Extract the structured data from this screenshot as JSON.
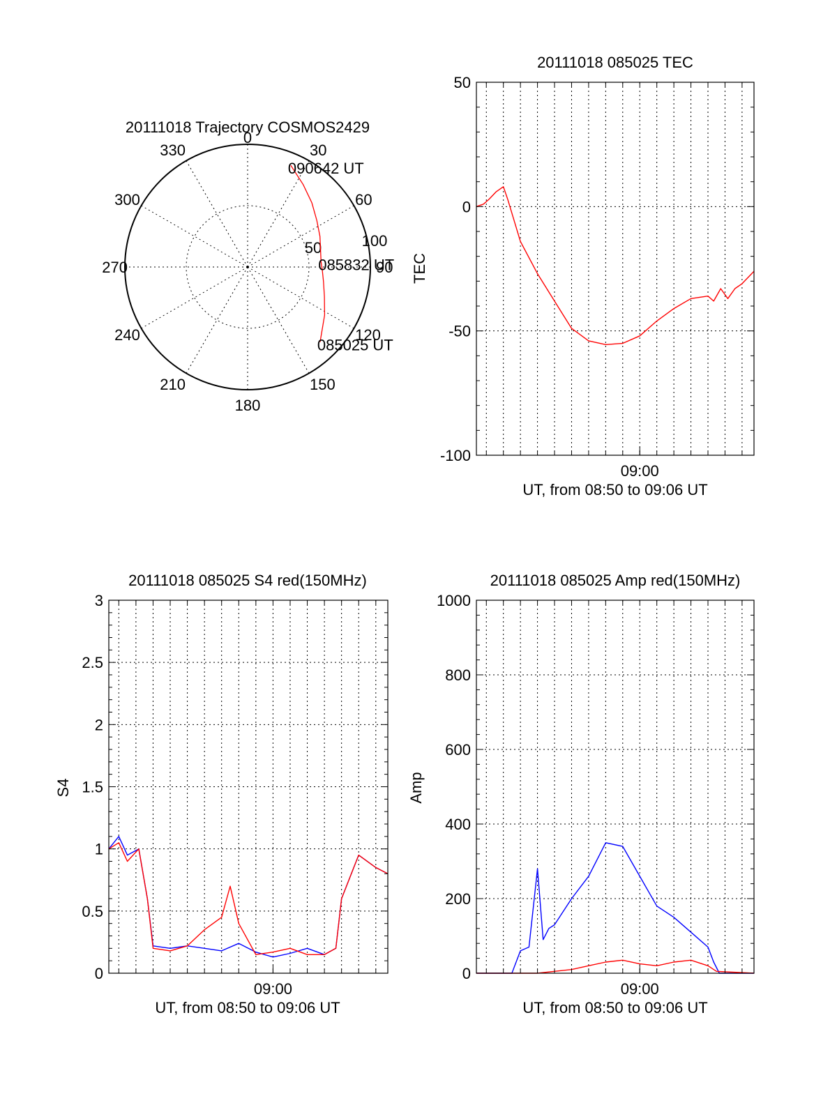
{
  "chart_data": [
    {
      "id": "trajectory",
      "type": "polar",
      "title": "20111018 Trajectory COSMOS2429",
      "angle_ticks": [
        "0",
        "30",
        "60",
        "90",
        "120",
        "150",
        "180",
        "210",
        "240",
        "270",
        "300",
        "330"
      ],
      "radius_ticks": [
        "50",
        "100"
      ],
      "rlim": [
        0,
        100
      ],
      "grid": true,
      "series": [
        {
          "color": "#ff0000",
          "points_azimuth_deg": [
            23,
            34,
            45,
            56,
            67,
            77,
            86,
            93,
            101,
            111,
            122,
            136
          ],
          "points_radius": [
            90,
            81,
            74,
            68,
            64,
            61,
            60,
            61,
            63,
            67,
            74,
            85
          ]
        }
      ],
      "annotations": [
        {
          "text": "090642 UT",
          "azimuth_deg": 23,
          "radius": 90
        },
        {
          "text": "085832 UT",
          "azimuth_deg": 86,
          "radius": 60
        },
        {
          "text": "085025 UT",
          "azimuth_deg": 136,
          "radius": 85
        }
      ]
    },
    {
      "id": "tec",
      "type": "line",
      "title": "20111018 085025 TEC",
      "xlabel": "UT, from 08:50 to 09:06 UT",
      "ylabel": "TEC",
      "xlim": [
        "08:50:25",
        "09:06:42"
      ],
      "x_tick_labels": [
        "09:00"
      ],
      "x_tick_values": [
        "09:00:00"
      ],
      "ylim": [
        -100,
        50
      ],
      "y_tick_labels": [
        "50",
        "0",
        "-50",
        "-100"
      ],
      "y_tick_values": [
        50,
        0,
        -50,
        -100
      ],
      "grid": true,
      "series": [
        {
          "color": "#ff0000",
          "x": [
            "08:50:25",
            "08:50:50",
            "08:51:10",
            "08:51:35",
            "08:52:00",
            "08:52:15",
            "08:53:00",
            "08:54:00",
            "08:55:00",
            "08:56:00",
            "08:57:00",
            "08:58:00",
            "08:59:00",
            "09:00:00",
            "09:01:00",
            "09:02:00",
            "09:03:00",
            "09:04:00",
            "09:04:20",
            "09:04:45",
            "09:05:10",
            "09:05:35",
            "09:06:00",
            "09:06:42"
          ],
          "y": [
            0,
            1,
            3,
            6,
            8,
            3,
            -14,
            -27,
            -38,
            -49,
            -54,
            -55.5,
            -55,
            -52,
            -46,
            -41,
            -37,
            -36,
            -38,
            -33,
            -37,
            -33,
            -31,
            -26
          ]
        }
      ]
    },
    {
      "id": "s4",
      "type": "line",
      "title": "20111018 085025 S4 red(150MHz)",
      "xlabel": "UT, from 08:50 to 09:06 UT",
      "ylabel": "S4",
      "xlim": [
        "08:50:25",
        "09:06:42"
      ],
      "x_tick_labels": [
        "09:00"
      ],
      "x_tick_values": [
        "09:00:00"
      ],
      "ylim": [
        0,
        3
      ],
      "y_tick_labels": [
        "3",
        "2.5",
        "2",
        "1.5",
        "1",
        "0.5",
        "0"
      ],
      "y_tick_values": [
        3,
        2.5,
        2,
        1.5,
        1,
        0.5,
        0
      ],
      "grid": true,
      "series": [
        {
          "color": "#0000ff",
          "x": [
            "08:50:25",
            "08:51:00",
            "08:51:30",
            "08:52:10",
            "08:52:40",
            "08:53:00",
            "08:54:00",
            "08:55:00",
            "08:56:00",
            "08:57:00",
            "08:58:00",
            "08:59:00",
            "09:00:00",
            "09:01:00",
            "09:02:00",
            "09:03:00",
            "09:03:40",
            "09:04:00",
            "09:05:00",
            "09:06:00",
            "09:06:42"
          ],
          "y": [
            1.0,
            1.1,
            0.95,
            1.0,
            0.6,
            0.22,
            0.2,
            0.22,
            0.2,
            0.18,
            0.24,
            0.17,
            0.13,
            0.16,
            0.2,
            0.15,
            0.2,
            0.6,
            0.95,
            0.85,
            0.8
          ]
        },
        {
          "color": "#ff0000",
          "x": [
            "08:50:25",
            "08:51:00",
            "08:51:30",
            "08:52:10",
            "08:52:40",
            "08:53:00",
            "08:54:00",
            "08:55:00",
            "08:56:00",
            "08:57:00",
            "08:57:30",
            "08:58:00",
            "08:59:00",
            "09:00:00",
            "09:01:00",
            "09:02:00",
            "09:03:00",
            "09:03:40",
            "09:04:00",
            "09:05:00",
            "09:06:00",
            "09:06:42"
          ],
          "y": [
            1.0,
            1.05,
            0.9,
            1.0,
            0.6,
            0.2,
            0.18,
            0.22,
            0.35,
            0.45,
            0.7,
            0.4,
            0.15,
            0.17,
            0.2,
            0.15,
            0.15,
            0.2,
            0.6,
            0.95,
            0.85,
            0.8
          ]
        }
      ]
    },
    {
      "id": "amp",
      "type": "line",
      "title": "20111018 085025 Amp red(150MHz)",
      "xlabel": "UT, from 08:50 to 09:06 UT",
      "ylabel": "Amp",
      "xlim": [
        "08:50:25",
        "09:06:42"
      ],
      "x_tick_labels": [
        "09:00"
      ],
      "x_tick_values": [
        "09:00:00"
      ],
      "ylim": [
        0,
        1000
      ],
      "y_tick_labels": [
        "1000",
        "800",
        "600",
        "400",
        "200",
        "0"
      ],
      "y_tick_values": [
        1000,
        800,
        600,
        400,
        200,
        0
      ],
      "grid": true,
      "series": [
        {
          "color": "#0000ff",
          "x": [
            "08:50:25",
            "08:52:30",
            "08:53:00",
            "08:53:30",
            "08:54:00",
            "08:54:20",
            "08:54:40",
            "08:55:00",
            "08:56:00",
            "08:57:00",
            "08:58:00",
            "08:59:00",
            "09:00:00",
            "09:01:00",
            "09:02:00",
            "09:03:00",
            "09:04:00",
            "09:04:20",
            "09:04:40",
            "09:06:42"
          ],
          "y": [
            0,
            0,
            60,
            70,
            280,
            90,
            120,
            130,
            200,
            260,
            350,
            340,
            260,
            180,
            150,
            110,
            70,
            30,
            0,
            0
          ]
        },
        {
          "color": "#ff0000",
          "x": [
            "08:50:25",
            "08:54:00",
            "08:55:00",
            "08:56:00",
            "08:57:00",
            "08:58:00",
            "08:59:00",
            "09:00:00",
            "09:01:00",
            "09:02:00",
            "09:03:00",
            "09:04:00",
            "09:04:30",
            "09:06:42"
          ],
          "y": [
            0,
            0,
            5,
            10,
            20,
            30,
            35,
            25,
            20,
            30,
            35,
            20,
            5,
            0
          ]
        }
      ]
    }
  ]
}
